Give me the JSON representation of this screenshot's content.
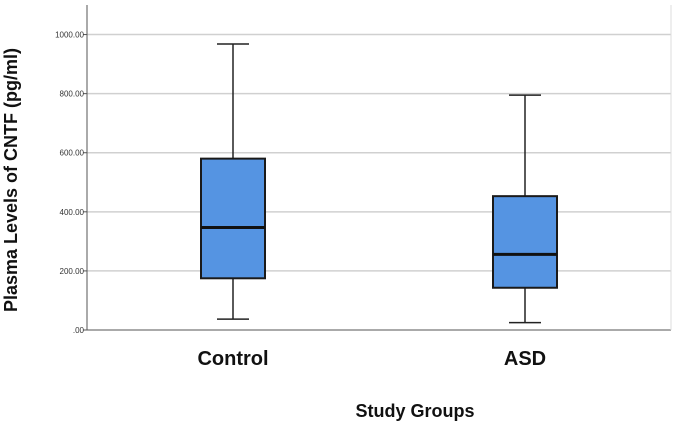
{
  "chart_data": {
    "type": "boxplot",
    "title": "",
    "xlabel": "Study Groups",
    "ylabel": "Plasma Levels of CNTF (pg/ml)",
    "ylim": [
      0,
      1100
    ],
    "yticks": [
      0,
      200,
      400,
      600,
      800,
      1000
    ],
    "ytick_labels": [
      ".00",
      "200.00",
      "400.00",
      "600.00",
      "800.00",
      "1000.00"
    ],
    "grid": true,
    "box_color": "#5594E2",
    "categories": [
      "Control",
      "ASD"
    ],
    "boxes": [
      {
        "category": "Control",
        "min": 37,
        "q1": 175,
        "median": 347,
        "q3": 580,
        "max": 968
      },
      {
        "category": "ASD",
        "min": 25,
        "q1": 143,
        "median": 256,
        "q3": 453,
        "max": 795
      }
    ]
  }
}
